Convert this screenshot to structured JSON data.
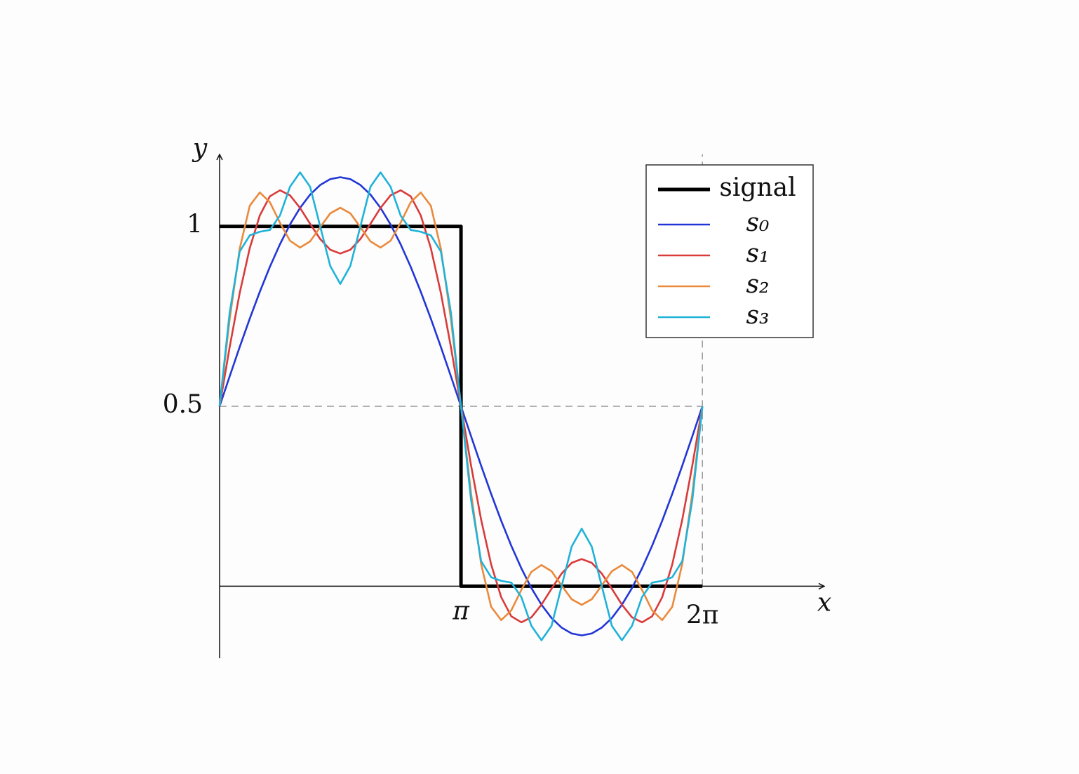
{
  "chart_data": {
    "type": "line",
    "x_label": "x",
    "y_label": "y",
    "xlim": [
      0,
      7.87
    ],
    "ylim": [
      -0.2,
      1.2
    ],
    "xticks": [
      {
        "value": 3.1416,
        "label": "π"
      },
      {
        "value": 6.2832,
        "label": "2π"
      }
    ],
    "yticks": [
      0.5,
      1
    ],
    "legend": "upper right",
    "x": [
      0,
      0.1309,
      0.2618,
      0.3927,
      0.5236,
      0.6545,
      0.7854,
      0.9163,
      1.0472,
      1.1781,
      1.309,
      1.4399,
      1.5708,
      1.7017,
      1.8326,
      1.9635,
      2.0944,
      2.2253,
      2.3562,
      2.4871,
      2.618,
      2.7489,
      2.8798,
      3.0107,
      3.1416,
      3.2725,
      3.4034,
      3.5343,
      3.6652,
      3.7961,
      3.927,
      4.0579,
      4.1888,
      4.3197,
      4.4506,
      4.5815,
      4.7124,
      4.8433,
      4.9742,
      5.1051,
      5.236,
      5.3669,
      5.4978,
      5.6287,
      5.7596,
      5.8905,
      6.0214,
      6.1523,
      6.2832
    ],
    "series": [
      {
        "name": "signal",
        "color": "#000000",
        "x": [
          0,
          3.1416,
          3.1416,
          6.2832
        ],
        "values": [
          1,
          1,
          0,
          0
        ]
      },
      {
        "name": "s₀",
        "color": "#2236d6",
        "values": [
          0.5,
          0.5831,
          0.6648,
          0.7436,
          0.8183,
          0.8876,
          0.9502,
          1.0051,
          1.0513,
          1.0882,
          1.1149,
          1.1312,
          1.1366,
          1.1312,
          1.1149,
          1.0882,
          1.0513,
          1.0051,
          0.9502,
          0.8876,
          0.8183,
          0.7436,
          0.6648,
          0.5831,
          0.5,
          0.4169,
          0.3352,
          0.2564,
          0.1817,
          0.1124,
          0.0498,
          -0.0051,
          -0.0513,
          -0.0882,
          -0.1149,
          -0.1312,
          -0.1366,
          -0.1312,
          -0.1149,
          -0.0882,
          -0.0513,
          -0.0051,
          0.0498,
          0.1124,
          0.1817,
          0.2564,
          0.3352,
          0.4169,
          0.5
        ]
      },
      {
        "name": "s₁",
        "color": "#d93a3a",
        "values": [
          0.5,
          0.6643,
          0.8148,
          0.9397,
          1.0305,
          1.0836,
          1.1002,
          1.0863,
          1.0513,
          1.007,
          0.9649,
          0.9351,
          0.9244,
          0.9351,
          0.9649,
          1.007,
          1.0513,
          1.0863,
          1.1002,
          1.0836,
          1.0305,
          0.9397,
          0.8148,
          0.6643,
          0.5,
          0.3357,
          0.1852,
          0.0603,
          -0.0305,
          -0.0836,
          -0.1002,
          -0.0863,
          -0.0513,
          -0.007,
          0.0351,
          0.0649,
          0.0756,
          0.0649,
          0.0351,
          -0.007,
          -0.0513,
          -0.0863,
          -0.1002,
          -0.0836,
          -0.0305,
          0.0603,
          0.1852,
          0.3357,
          0.5
        ]
      },
      {
        "name": "s₂",
        "color": "#ea8a3c",
        "values": [
          0.5,
          0.7418,
          0.9378,
          1.0573,
          1.0942,
          1.067,
          1.0102,
          0.96,
          0.9411,
          0.9582,
          0.9978,
          1.0361,
          1.0517,
          1.0361,
          0.9978,
          0.9582,
          0.9411,
          0.96,
          1.0102,
          1.067,
          1.0942,
          1.0573,
          0.9378,
          0.7418,
          0.5,
          0.2582,
          0.0622,
          -0.0573,
          -0.0942,
          -0.067,
          -0.0102,
          0.04,
          0.0589,
          0.0418,
          0.0022,
          -0.0361,
          -0.0517,
          -0.0361,
          0.0022,
          0.0418,
          0.0589,
          0.04,
          -0.0102,
          -0.067,
          -0.0942,
          -0.0573,
          0.0622,
          0.2582,
          0.5
        ]
      },
      {
        "name": "s₃",
        "color": "#1fb2d9",
        "values": [
          0.5,
          0.76,
          0.93,
          0.975,
          0.985,
          0.99,
          1.03,
          1.11,
          1.15,
          1.11,
          1.0,
          0.89,
          0.84,
          0.89,
          1.0,
          1.11,
          1.15,
          1.11,
          1.03,
          0.99,
          0.985,
          0.975,
          0.93,
          0.76,
          0.5,
          0.24,
          0.07,
          0.025,
          0.015,
          0.01,
          -0.03,
          -0.11,
          -0.15,
          -0.11,
          0,
          0.11,
          0.16,
          0.11,
          0,
          -0.11,
          -0.15,
          -0.11,
          -0.03,
          0.01,
          0.015,
          0.025,
          0.07,
          0.24,
          0.5
        ]
      }
    ]
  }
}
